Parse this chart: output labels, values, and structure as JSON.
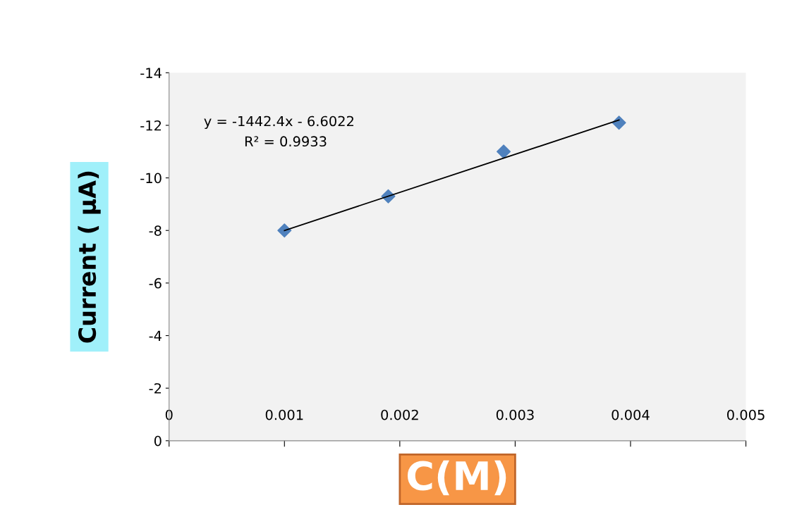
{
  "chart_data": {
    "type": "scatter",
    "xlabel": "C(M)",
    "ylabel": "Current ( µA)",
    "x": [
      0.001,
      0.0019,
      0.0029,
      0.0039
    ],
    "series": [
      {
        "color": "#4f81bd",
        "marker": "diamond",
        "values": [
          -8.0,
          -9.3,
          -11.0,
          -12.1
        ]
      },
      {
        "type": "line",
        "color": "#000000",
        "marker": "none",
        "line_style": "solid",
        "x": [
          0.001,
          0.0039
        ],
        "values": [
          -8.0,
          -12.2
        ]
      }
    ],
    "xlim": [
      0,
      0.005
    ],
    "xticks": [
      0,
      0.001,
      0.002,
      0.003,
      0.004,
      0.005
    ],
    "ylim": [
      0,
      -14
    ],
    "yticks": [
      0,
      -2,
      -4,
      -6,
      -8,
      -10,
      -12,
      -14
    ],
    "annotations": [
      "y = -1442.4x - 6.6022",
      "R² = 0.9933"
    ],
    "grid": false,
    "legend": false
  }
}
